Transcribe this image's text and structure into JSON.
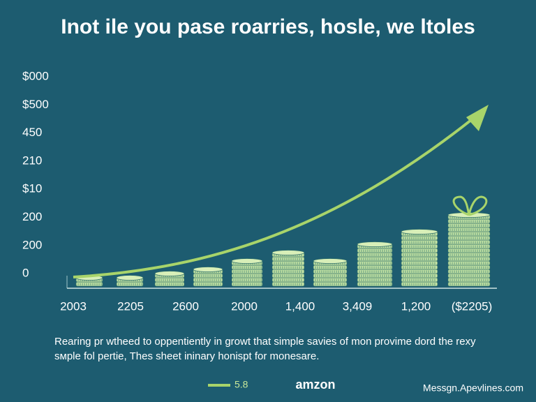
{
  "header": {
    "title": "Inot ile you pase roarries, hosle, we ltoles"
  },
  "y_labels": [
    "$000",
    "$500",
    "450",
    "210",
    "$10",
    "200",
    "200",
    "0"
  ],
  "x_labels": [
    "2003",
    "2205",
    "2600",
    "2000",
    "1,400",
    "3,409",
    "1,200",
    "($2205)"
  ],
  "caption": [
    "Rearing pr wtheed to oppentiently in growt that simple savies of mon provime dord the rexy",
    "sмple fol pertie, Thes sheet ininary honispt for monesare."
  ],
  "footer": {
    "legend": "5.8",
    "brand": "amzon",
    "site": "Messgn.Apevlines.com"
  }
}
